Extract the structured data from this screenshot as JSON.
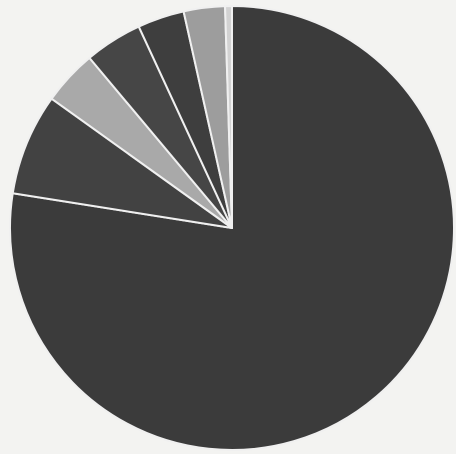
{
  "chart_data": {
    "type": "pie",
    "values": [
      77.5,
      7.4,
      4.0,
      4.2,
      3.4,
      3.0,
      0.5
    ],
    "colors": [
      "#3b3b3b",
      "#424242",
      "#a9a9a9",
      "#464646",
      "#3e3e3e",
      "#9d9d9d",
      "#d2d2d2"
    ]
  }
}
